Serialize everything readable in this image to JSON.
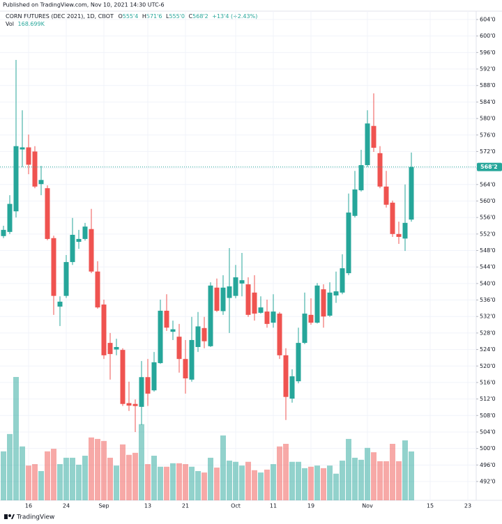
{
  "chart_data": {
    "type": "candlestick",
    "header": {
      "published": "Published on TradingView.com, Nov 10, 2021 14:30 UTC-6",
      "symbol": "CORN FUTURES (DEC 2021), 1D, CBOT",
      "ohlc": [
        {
          "key": "O",
          "value": "555'4"
        },
        {
          "key": "H",
          "value": "571'6"
        },
        {
          "key": "L",
          "value": "555'0"
        },
        {
          "key": "C",
          "value": "568'2"
        }
      ],
      "change": "+13'4 (+2.43%)",
      "volume_key": "Vol",
      "volume_value": "168.699K"
    },
    "footer": "TradingView",
    "categories": [
      null,
      null,
      null,
      null,
      "16",
      null,
      null,
      null,
      null,
      null,
      "24",
      null,
      null,
      null,
      null,
      null,
      "Sep",
      null,
      null,
      null,
      null,
      null,
      null,
      "13",
      null,
      null,
      null,
      null,
      null,
      "21",
      null,
      null,
      null,
      null,
      null,
      null,
      null,
      "Oct",
      null,
      null,
      null,
      null,
      null,
      "11",
      null,
      null,
      null,
      null,
      null,
      "19",
      null,
      null,
      null,
      null,
      null,
      null,
      null,
      null,
      "Nov",
      null,
      null,
      null,
      null,
      null,
      null,
      null,
      null,
      null,
      "15",
      null,
      null,
      null,
      null,
      null,
      "23",
      null
    ],
    "open": [
      551.5,
      552.5,
      557.5,
      572.5,
      573,
      572,
      564.1,
      563.1,
      551,
      534.4,
      537,
      545.2,
      550.1,
      550.8,
      553.2,
      542.9,
      534.9,
      525.6,
      524,
      523.9,
      511,
      510.8,
      510.1,
      517.3,
      514.1,
      520.7,
      533.4,
      528.3,
      527.1,
      521.7,
      516.7,
      524.6,
      529.2,
      524.8,
      539,
      533.3,
      536.5,
      537,
      540,
      539.8,
      537.8,
      532.9,
      533.2,
      530.5,
      532.7,
      522.6,
      512.1,
      516.3,
      525.6,
      532.4,
      530.5,
      538.6,
      532.2,
      537.1,
      537.8,
      542.5,
      556.4,
      562.6,
      568.7,
      578.2,
      571.6,
      563.5,
      559.6,
      552,
      550.9,
      555.5,
      null,
      null,
      null,
      null,
      null,
      null,
      null,
      null,
      null,
      null
    ],
    "high": [
      554,
      561.4,
      594.2,
      582,
      576.1,
      573.3,
      568.5,
      563.8,
      551.6,
      536.9,
      546.9,
      555.9,
      553,
      554.7,
      558.1,
      545.4,
      536.1,
      528,
      526.6,
      524.3,
      516.2,
      511.9,
      521.2,
      521.7,
      523.4,
      536.1,
      537.4,
      531,
      530.2,
      526.3,
      531.9,
      533.1,
      531.9,
      540.3,
      541.2,
      542,
      548.6,
      544.5,
      547.4,
      541.5,
      542,
      536.9,
      536.1,
      537.4,
      533.1,
      524.3,
      519.2,
      529.3,
      537.8,
      536.4,
      540.1,
      539.8,
      540.3,
      542.9,
      547.1,
      561.8,
      567.3,
      572.4,
      582,
      586.1,
      573.3,
      567.3,
      560.1,
      555,
      564,
      571.75,
      null,
      null,
      null,
      null,
      null,
      null,
      null,
      null,
      null,
      null
    ],
    "low": [
      551,
      552,
      556,
      568.2,
      566.5,
      563.1,
      561.4,
      550.5,
      532.4,
      529.7,
      536.5,
      544.5,
      548.4,
      550.4,
      542.5,
      533.9,
      521.7,
      516.7,
      522.6,
      510.3,
      509.1,
      504,
      505.7,
      510.3,
      513.8,
      520.5,
      528.5,
      526.3,
      518.4,
      513.3,
      516.2,
      523.4,
      524.3,
      524.6,
      533.1,
      532.4,
      528,
      536.4,
      536.9,
      531.9,
      531,
      532.7,
      529.3,
      529.3,
      521.7,
      506.9,
      511.1,
      515.8,
      525.3,
      530,
      530.3,
      529.3,
      531.9,
      535.3,
      537.4,
      542,
      556,
      562.3,
      568.2,
      571.9,
      563.1,
      558.4,
      551.3,
      549.6,
      547.9,
      555,
      null,
      null,
      null,
      null,
      null,
      null,
      null,
      null,
      null,
      null
    ],
    "close": [
      553,
      559.3,
      573.3,
      573,
      568.8,
      563.5,
      565.1,
      550.8,
      537,
      535.6,
      545.2,
      551.8,
      550.8,
      553.8,
      542.9,
      534.2,
      522.6,
      522.9,
      524.6,
      510.8,
      510.4,
      510.3,
      517.3,
      513.3,
      520.9,
      533.4,
      529.3,
      528.9,
      521.7,
      517,
      526.3,
      529.6,
      526,
      539.5,
      533.4,
      539,
      539.3,
      541.5,
      540.8,
      532.4,
      532.7,
      534.2,
      530.2,
      533.2,
      522.6,
      512.5,
      517.5,
      525.6,
      532.7,
      530.5,
      539.5,
      532,
      537.8,
      538.1,
      543.7,
      557.2,
      562.8,
      568.7,
      578.8,
      572.9,
      563.5,
      559.1,
      552,
      551.3,
      554.7,
      568.25,
      null,
      null,
      null,
      null,
      null,
      null,
      null,
      null,
      null,
      null
    ],
    "volume": [
      169000,
      229000,
      426000,
      186000,
      120000,
      125000,
      101000,
      169000,
      178000,
      125000,
      147000,
      147000,
      123000,
      154000,
      217000,
      212000,
      205000,
      147000,
      120000,
      193000,
      157000,
      164000,
      263000,
      125000,
      154000,
      116000,
      116000,
      128000,
      128000,
      125000,
      116000,
      101000,
      96000,
      147000,
      113000,
      224000,
      137000,
      133000,
      120000,
      133000,
      104000,
      96000,
      106000,
      125000,
      186000,
      195000,
      133000,
      133000,
      111000,
      116000,
      120000,
      111000,
      120000,
      92000,
      137000,
      212000,
      147000,
      140000,
      181000,
      166000,
      135000,
      135000,
      195000,
      135000,
      207000,
      168699,
      null,
      null,
      null,
      null,
      null,
      null,
      null,
      null,
      null,
      null
    ],
    "up_color": "#26a69a",
    "down_color": "#ef5350",
    "ylim": [
      492,
      604
    ],
    "yticks": [
      {
        "value": 604,
        "label": "604'0"
      },
      {
        "value": 600,
        "label": "600'0"
      },
      {
        "value": 596,
        "label": "596'0"
      },
      {
        "value": 592,
        "label": "592'0"
      },
      {
        "value": 588,
        "label": "588'0"
      },
      {
        "value": 584,
        "label": "584'0"
      },
      {
        "value": 580,
        "label": "580'0"
      },
      {
        "value": 576,
        "label": "576'0"
      },
      {
        "value": 572,
        "label": "572'0"
      },
      {
        "value": 568,
        "label": "568'0"
      },
      {
        "value": 564,
        "label": "564'0"
      },
      {
        "value": 560,
        "label": "560'0"
      },
      {
        "value": 556,
        "label": "556'0"
      },
      {
        "value": 552,
        "label": "552'0"
      },
      {
        "value": 548,
        "label": "548'0"
      },
      {
        "value": 544,
        "label": "544'0"
      },
      {
        "value": 540,
        "label": "540'0"
      },
      {
        "value": 536,
        "label": "536'0"
      },
      {
        "value": 532,
        "label": "532'0"
      },
      {
        "value": 528,
        "label": "528'0"
      },
      {
        "value": 524,
        "label": "524'0"
      },
      {
        "value": 520,
        "label": "520'0"
      },
      {
        "value": 516,
        "label": "516'0"
      },
      {
        "value": 512,
        "label": "512'0"
      },
      {
        "value": 508,
        "label": "508'0"
      },
      {
        "value": 504,
        "label": "504'0"
      },
      {
        "value": 500,
        "label": "500'0"
      },
      {
        "value": 496,
        "label": "496'0"
      },
      {
        "value": 492,
        "label": "492'0"
      }
    ],
    "last_price": {
      "value": 568.25,
      "label": "568'2"
    },
    "grid": true
  }
}
